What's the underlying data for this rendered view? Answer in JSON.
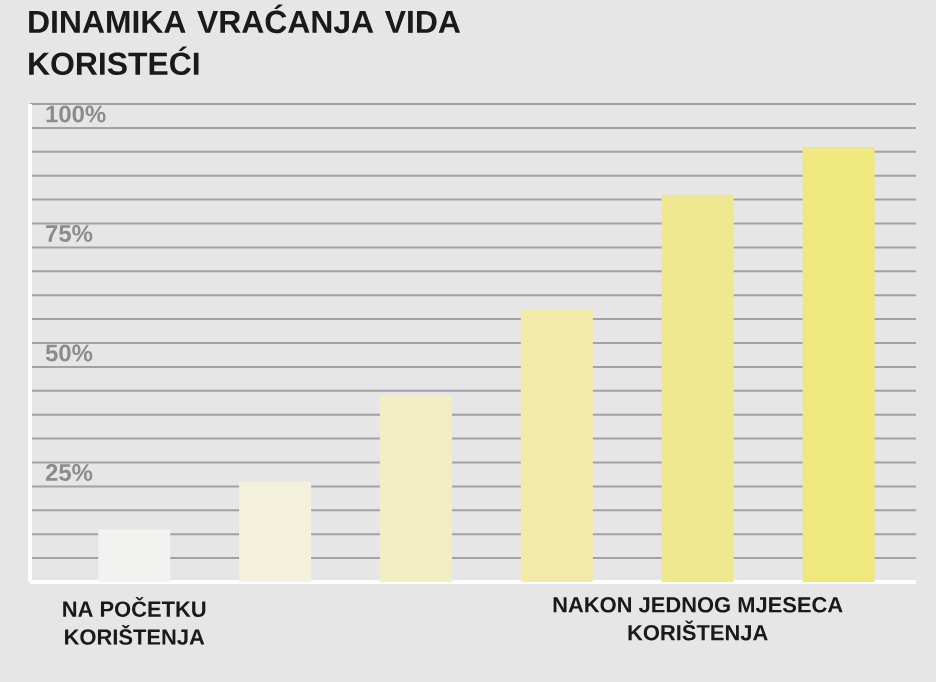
{
  "chart_data": {
    "type": "bar",
    "title": "DINAMIKA VRAĆANJA VIDA KORISTEĆI",
    "categories": [
      "NA POČETKU KORIŠTENJA",
      null,
      null,
      null,
      "NAKON JEDNOG MJESECA KORIŠTENJA",
      null
    ],
    "values": [
      11,
      21,
      39,
      57,
      81,
      91
    ],
    "colors": [
      "#f2f2f0",
      "#f3f0dc",
      "#f3edc4",
      "#f2eaa8",
      "#f0e890",
      "#efe87f"
    ],
    "ylim": [
      0,
      100
    ],
    "yticks": [
      {
        "value": 5,
        "label": null
      },
      {
        "value": 10,
        "label": null
      },
      {
        "value": 15,
        "label": null
      },
      {
        "value": 20,
        "label": null
      },
      {
        "value": 25,
        "label": "25%"
      },
      {
        "value": 30,
        "label": null
      },
      {
        "value": 35,
        "label": null
      },
      {
        "value": 40,
        "label": null
      },
      {
        "value": 45,
        "label": null
      },
      {
        "value": 50,
        "label": "50%"
      },
      {
        "value": 55,
        "label": null
      },
      {
        "value": 60,
        "label": null
      },
      {
        "value": 65,
        "label": null
      },
      {
        "value": 70,
        "label": null
      },
      {
        "value": 75,
        "label": "75%"
      },
      {
        "value": 80,
        "label": null
      },
      {
        "value": 85,
        "label": null
      },
      {
        "value": 90,
        "label": null
      },
      {
        "value": 95,
        "label": null
      },
      {
        "value": 100,
        "label": "100%"
      }
    ],
    "grid": "y"
  }
}
